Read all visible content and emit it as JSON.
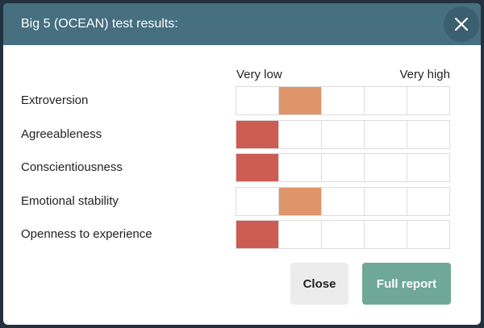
{
  "dialog": {
    "title": "Big 5 (OCEAN) test results:",
    "close_icon": "close-icon"
  },
  "scale": {
    "low_label": "Very low",
    "high_label": "Very high",
    "levels": 5
  },
  "colors": {
    "header": "#466f80",
    "very_low": "#cd5c52",
    "low": "#e0946a",
    "primary_button": "#6fa897"
  },
  "traits": [
    {
      "label": "Extroversion",
      "level": 2
    },
    {
      "label": "Agreeableness",
      "level": 1
    },
    {
      "label": "Conscientiousness",
      "level": 1
    },
    {
      "label": "Emotional stability",
      "level": 2
    },
    {
      "label": "Openness to experience",
      "level": 1
    }
  ],
  "buttons": {
    "close_label": "Close",
    "full_report_label": "Full report"
  }
}
